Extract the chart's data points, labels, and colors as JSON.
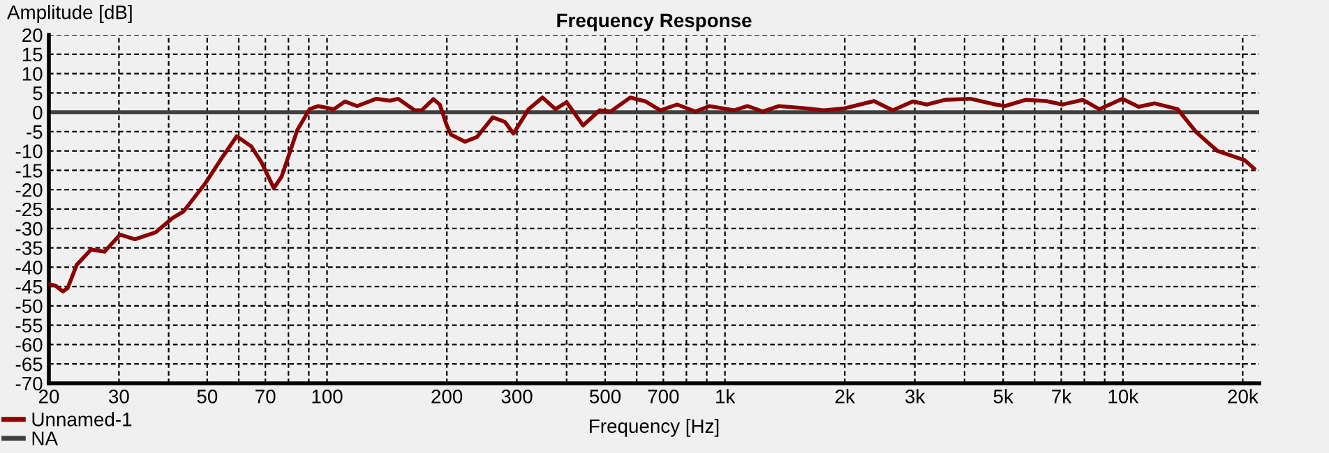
{
  "chart_data": {
    "type": "line",
    "title": "Frequency Response",
    "xlabel": "Frequency [Hz]",
    "ylabel": "Amplitude [dB]",
    "log": "x",
    "xlim": [
      20,
      22000
    ],
    "ylim": [
      -70,
      20
    ],
    "xticks": [
      20,
      30,
      {
        "value": 40,
        "label": null
      },
      50,
      {
        "value": 60,
        "label": null
      },
      70,
      {
        "value": 80,
        "label": null
      },
      {
        "value": 90,
        "label": null
      },
      100,
      200,
      300,
      {
        "value": 400,
        "label": null
      },
      500,
      {
        "value": 600,
        "label": null
      },
      700,
      {
        "value": 800,
        "label": null
      },
      {
        "value": 900,
        "label": null
      },
      {
        "value": 1000,
        "label": "1k"
      },
      {
        "value": 2000,
        "label": "2k"
      },
      {
        "value": 3000,
        "label": "3k"
      },
      {
        "value": 4000,
        "label": null
      },
      {
        "value": 5000,
        "label": "5k"
      },
      {
        "value": 6000,
        "label": null
      },
      {
        "value": 7000,
        "label": "7k"
      },
      {
        "value": 8000,
        "label": null
      },
      {
        "value": 9000,
        "label": null
      },
      {
        "value": 10000,
        "label": "10k"
      },
      {
        "value": 20000,
        "label": "20k"
      }
    ],
    "yticks": [
      -70,
      -65,
      -60,
      -55,
      -50,
      -45,
      -40,
      -35,
      -30,
      -25,
      -20,
      -15,
      -10,
      -5,
      0,
      5,
      10,
      15,
      20
    ],
    "grid": true,
    "legend": "bottom left",
    "marker": "none",
    "line_style": "solid",
    "series": [
      {
        "name": "Unnamed-1",
        "color": "#8b0000",
        "x": [
          20,
          20.8,
          21.7,
          22.3,
          23.5,
          25.5,
          27.6,
          30.2,
          32.9,
          37.1,
          40.8,
          43.6,
          49.4,
          54.9,
          59.3,
          64.5,
          68.5,
          73.5,
          76.9,
          84.2,
          90.4,
          95.1,
          104,
          111,
          119,
          133,
          144,
          151,
          166,
          173,
          185,
          192,
          200,
          205,
          222,
          238,
          261,
          280,
          294,
          321,
          348,
          375,
          400,
          440,
          484,
          516,
          578,
          632,
          688,
          758,
          843,
          913,
          1053,
          1139,
          1246,
          1367,
          1600,
          1773,
          1996,
          2370,
          2640,
          2967,
          3215,
          3567,
          4132,
          4788,
          5050,
          5690,
          6415,
          7040,
          7940,
          8720,
          9970,
          10950,
          12020,
          13730,
          15300,
          17280,
          18960,
          20240,
          21340
        ],
        "values": [
          -44.4,
          -44.8,
          -46.3,
          -45.4,
          -39.4,
          -35.5,
          -36,
          -31.6,
          -32.8,
          -31,
          -27.4,
          -25.6,
          -18.4,
          -11.2,
          -6.2,
          -8.8,
          -13,
          -19.6,
          -16.6,
          -4.6,
          0.8,
          1.6,
          0.8,
          2.8,
          1.6,
          3.5,
          3,
          3.5,
          0.5,
          0.5,
          3.4,
          2,
          -3.4,
          -5.8,
          -7.6,
          -6.4,
          -1.3,
          -2.5,
          -5.5,
          0.8,
          3.8,
          0.8,
          2.6,
          -3.4,
          0.5,
          0.2,
          3.8,
          2.8,
          0.5,
          2,
          0.2,
          1.6,
          0.5,
          1.6,
          0.2,
          1.6,
          1,
          0.5,
          1,
          2.9,
          0.5,
          2.8,
          2,
          3.2,
          3.5,
          2,
          1.6,
          3.2,
          2.9,
          2,
          3.2,
          0.8,
          3.5,
          1.4,
          2.3,
          0.8,
          -5.2,
          -10,
          -11.4,
          -12.4,
          -14.5
        ]
      },
      {
        "name": "NA",
        "color": "#404040",
        "x": [
          20,
          22000
        ],
        "values": [
          0,
          0
        ]
      }
    ]
  }
}
